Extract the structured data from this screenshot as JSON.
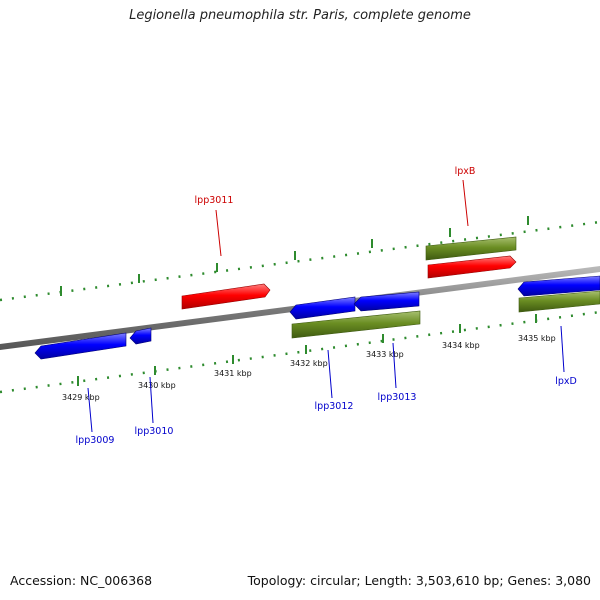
{
  "title": "Legionella pneumophila str. Paris, complete genome",
  "footer": {
    "accession": "Accession: NC_006368",
    "info": "Topology: circular; Length: 3,503,610 bp; Genes: 3,080"
  },
  "colors": {
    "forward_gene": "#ff0000",
    "reverse_gene": "#0000ff",
    "forward_cds": "#6b8e23",
    "reverse_cds": "#6b8e23",
    "backbone": "#888888",
    "tick_dots": "#2e8b2e",
    "forward_label": "#cc0000",
    "reverse_label": "#0000cc"
  },
  "kbp_labels": [
    "3429 kbp",
    "3430 kbp",
    "3431 kbp",
    "3432 kbp",
    "3433 kbp",
    "3434 kbp",
    "3435 kbp"
  ],
  "gene_labels": {
    "lpp3011": "lpp3011",
    "lpxB": "lpxB",
    "lpp3009": "lpp3009",
    "lpp3010": "lpp3010",
    "lpp3012": "lpp3012",
    "lpp3013": "lpp3013",
    "lpxD": "lpxD"
  }
}
